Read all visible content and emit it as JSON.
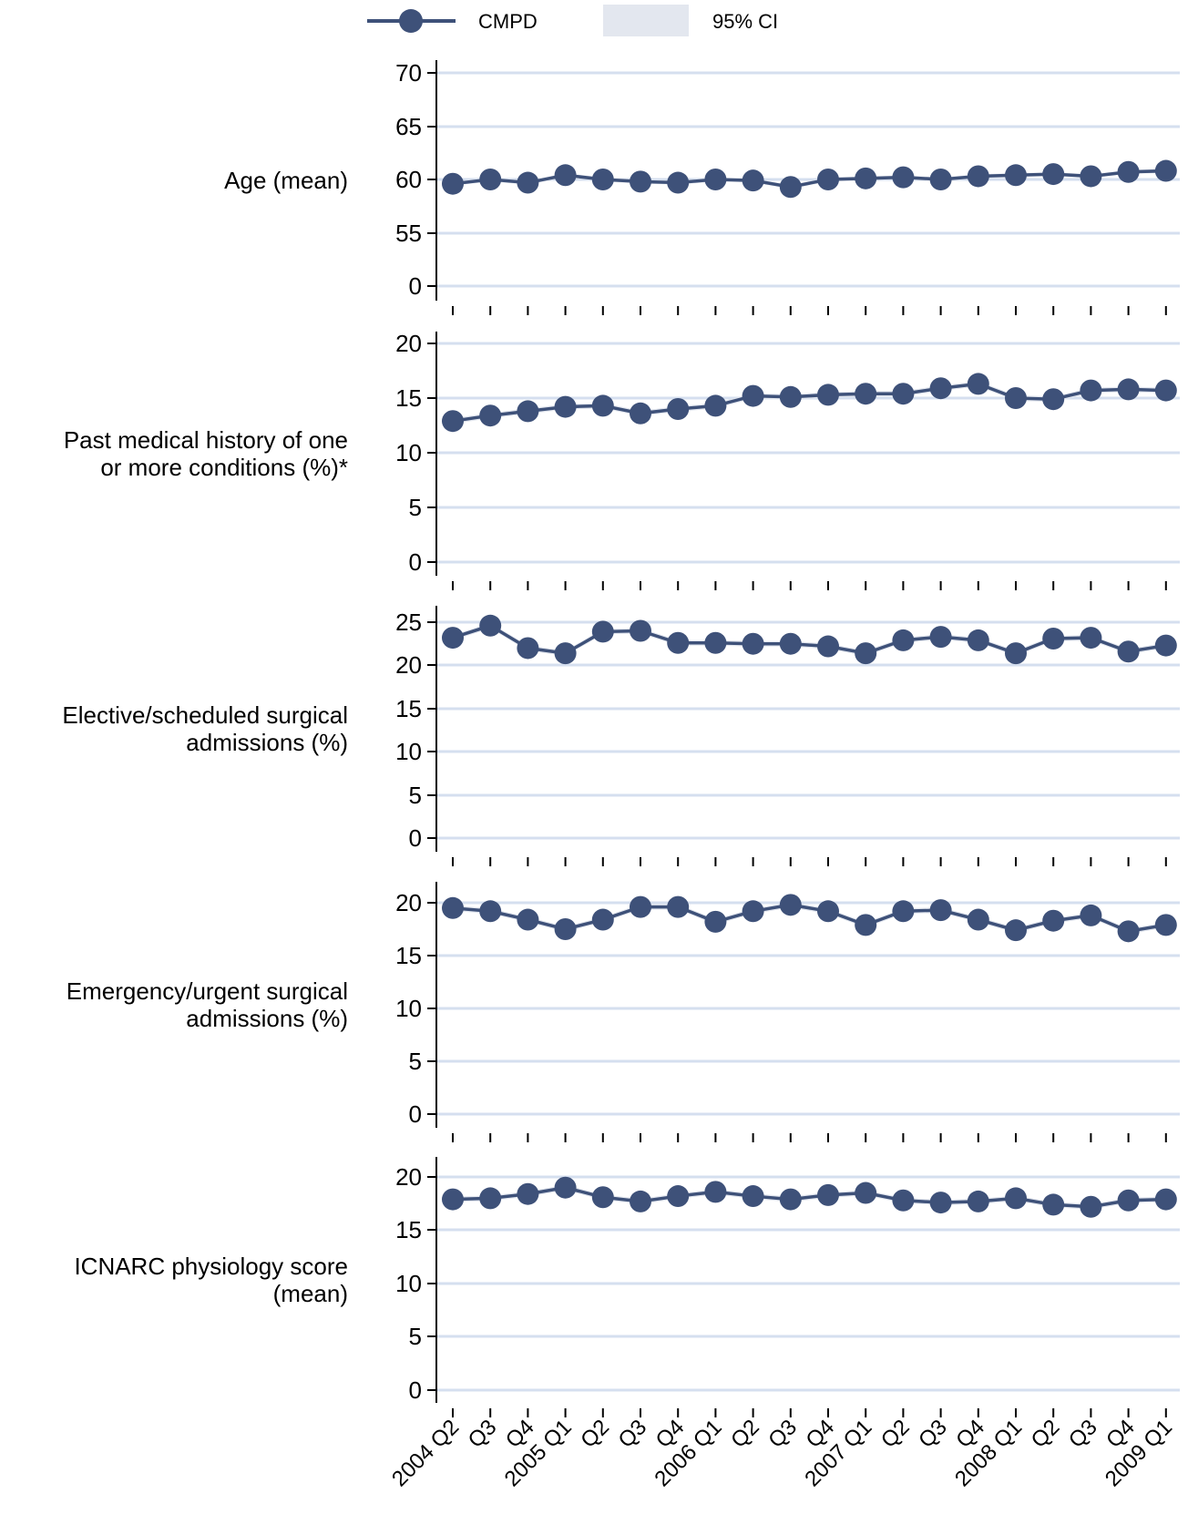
{
  "colors": {
    "series": "#3e5179",
    "ci_band": "#e3e7ef",
    "gridline": "#d5dfef",
    "axis": "#000000"
  },
  "legend": {
    "series_label": "CMPD",
    "ci_label": "95% CI"
  },
  "chart_data": {
    "type": "line",
    "categories": [
      "2004 Q2",
      "Q3",
      "Q4",
      "2005 Q1",
      "Q2",
      "Q3",
      "Q4",
      "2006 Q1",
      "Q2",
      "Q3",
      "Q4",
      "2007 Q1",
      "Q2",
      "Q3",
      "Q4",
      "2008 Q1",
      "Q2",
      "Q3",
      "Q4",
      "2009 Q1"
    ],
    "panels": [
      {
        "label_lines": [
          "Age (mean)"
        ],
        "yticks": [
          0,
          55,
          60,
          65,
          70
        ],
        "axis_break": true,
        "values": [
          59.6,
          60.0,
          59.7,
          60.4,
          60.0,
          59.8,
          59.7,
          60.0,
          59.9,
          59.3,
          60.0,
          60.1,
          60.2,
          60.0,
          60.3,
          60.4,
          60.5,
          60.3,
          60.7,
          60.8
        ]
      },
      {
        "label_lines": [
          "Past medical history of one",
          "or more conditions (%)*"
        ],
        "yticks": [
          0,
          5,
          10,
          15,
          20
        ],
        "axis_break": false,
        "values": [
          12.9,
          13.4,
          13.8,
          14.2,
          14.3,
          13.6,
          14.0,
          14.3,
          15.2,
          15.1,
          15.3,
          15.4,
          15.4,
          15.9,
          16.3,
          15.0,
          14.9,
          15.7,
          15.8,
          15.7
        ]
      },
      {
        "label_lines": [
          "Elective/scheduled surgical",
          "admissions (%)"
        ],
        "yticks": [
          0,
          5,
          10,
          15,
          20,
          25
        ],
        "axis_break": false,
        "values": [
          23.2,
          24.6,
          22.0,
          21.4,
          23.9,
          24.0,
          22.6,
          22.6,
          22.5,
          22.5,
          22.2,
          21.4,
          22.9,
          23.3,
          22.9,
          21.4,
          23.1,
          23.2,
          21.6,
          22.3
        ]
      },
      {
        "label_lines": [
          "Emergency/urgent surgical",
          "admissions (%)"
        ],
        "yticks": [
          0,
          5,
          10,
          15,
          20
        ],
        "axis_break": false,
        "values": [
          19.5,
          19.2,
          18.4,
          17.5,
          18.4,
          19.6,
          19.6,
          18.2,
          19.2,
          19.8,
          19.2,
          17.9,
          19.2,
          19.3,
          18.4,
          17.4,
          18.3,
          18.8,
          17.3,
          17.9
        ]
      },
      {
        "label_lines": [
          "ICNARC physiology score",
          "(mean)"
        ],
        "yticks": [
          0,
          5,
          10,
          15,
          20
        ],
        "axis_break": false,
        "values": [
          17.9,
          18.0,
          18.4,
          19.0,
          18.1,
          17.7,
          18.2,
          18.6,
          18.2,
          17.9,
          18.3,
          18.5,
          17.8,
          17.6,
          17.7,
          18.0,
          17.4,
          17.2,
          17.8,
          17.9
        ]
      }
    ]
  }
}
